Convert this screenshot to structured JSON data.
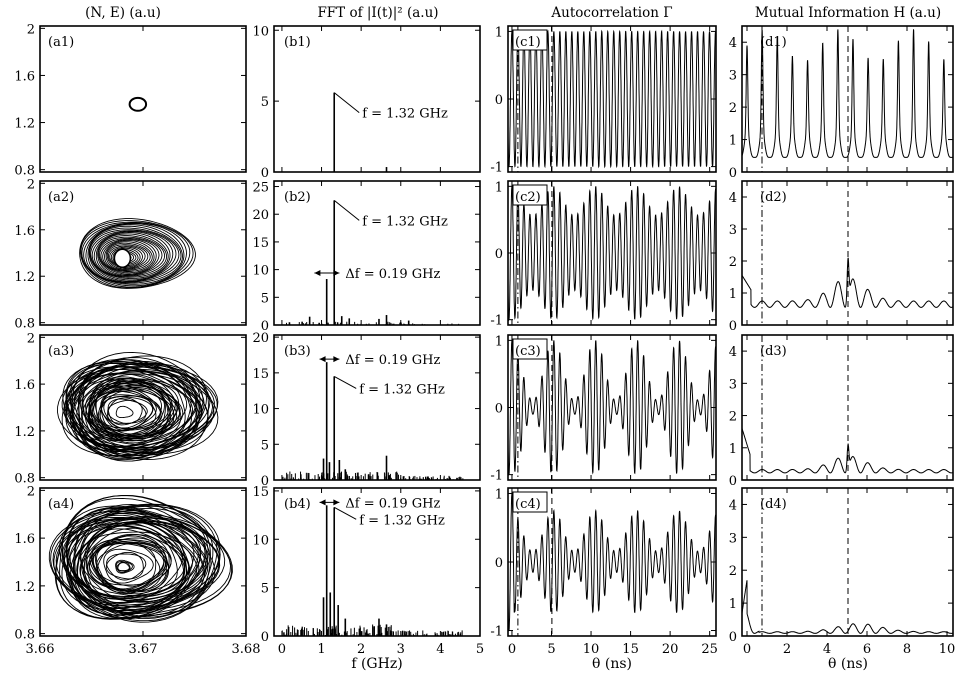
{
  "headers": [
    "(N, E)  (a.u)",
    "FFT of |I(t)|²  (a.u)",
    "Autocorrelation Γ",
    "Mutual Information H  (a.u)"
  ],
  "xlabels": [
    "f (GHz)",
    "θ (ns)",
    "θ (ns)"
  ],
  "chart_data": [
    {
      "type": "scatter",
      "panel": "a1",
      "series": [
        {
          "shape": "limit cycle",
          "x_range": [
            3.6687,
            3.6703
          ],
          "y_range": [
            1.3,
            1.41
          ]
        }
      ],
      "xlim": [
        3.66,
        3.68
      ],
      "ylim": [
        0.78,
        2.02
      ]
    },
    {
      "type": "scatter",
      "panel": "a2",
      "series": [
        {
          "shape": "torus",
          "x_range": [
            3.6633,
            3.6745
          ],
          "y_range": [
            1.07,
            1.67
          ]
        }
      ],
      "xlim": [
        3.66,
        3.68
      ],
      "ylim": [
        0.78,
        2.02
      ]
    },
    {
      "type": "scatter",
      "panel": "a3",
      "series": [
        {
          "shape": "chaotic attractor",
          "x_range": [
            3.6615,
            3.6765
          ],
          "y_range": [
            0.92,
            1.8
          ]
        }
      ],
      "xlim": [
        3.66,
        3.68
      ],
      "ylim": [
        0.78,
        2.02
      ]
    },
    {
      "type": "scatter",
      "panel": "a4",
      "series": [
        {
          "shape": "chaotic attractor",
          "x_range": [
            3.6605,
            3.6775
          ],
          "y_range": [
            0.86,
            1.88
          ]
        }
      ],
      "xlim": [
        3.66,
        3.68
      ],
      "ylim": [
        0.78,
        2.02
      ]
    },
    {
      "type": "bar",
      "panel": "b1",
      "x": [
        1.32,
        2.64
      ],
      "values": [
        5.6,
        0.35
      ],
      "xlim": [
        -0.2,
        5
      ],
      "ylim": [
        0,
        10.3
      ],
      "annotations": [
        "f = 1.32 GHz"
      ]
    },
    {
      "type": "bar",
      "panel": "b2",
      "x": [
        0.19,
        0.51,
        0.7,
        0.94,
        1.13,
        1.32,
        1.51,
        1.7,
        2.45,
        2.64,
        3.0,
        3.2
      ],
      "values": [
        0.5,
        0.6,
        1.5,
        0.4,
        8.3,
        22.5,
        1.6,
        1.2,
        1.1,
        1.8,
        0.5,
        0.8
      ],
      "xlim": [
        -0.2,
        5
      ],
      "ylim": [
        0,
        26
      ],
      "annotations": [
        "f = 1.32 GHz",
        "Δf = 0.19 GHz"
      ]
    },
    {
      "type": "bar",
      "panel": "b3",
      "x": [
        1.05,
        1.13,
        1.2,
        1.32,
        1.45,
        1.6,
        2.64
      ],
      "values": [
        3,
        16.5,
        2.5,
        14.5,
        2.8,
        1.5,
        3.4
      ],
      "xlim": [
        -0.2,
        5
      ],
      "ylim": [
        0,
        20.3
      ],
      "annotations": [
        "Δf = 0.19 GHz",
        "f = 1.32 GHz"
      ]
    },
    {
      "type": "bar",
      "panel": "b4",
      "x": [
        1.05,
        1.13,
        1.22,
        1.32,
        1.42,
        1.6,
        2.3,
        2.45,
        2.64
      ],
      "values": [
        4,
        13.5,
        4.5,
        13.3,
        3.2,
        1.8,
        1,
        1.8,
        1.2
      ],
      "xlim": [
        -0.2,
        5
      ],
      "ylim": [
        0,
        15.3
      ],
      "annotations": [
        "Δf = 0.19 GHz",
        "f = 1.32 GHz"
      ]
    },
    {
      "type": "line",
      "panel": "c1",
      "x_range": [
        -0.5,
        25.8
      ],
      "amplitude": 1,
      "period_ns": 0.757,
      "xlim": [
        -0.5,
        25.8
      ],
      "ylim": [
        -1.08,
        1.08
      ],
      "vlines": [
        0.75,
        5.05
      ]
    },
    {
      "type": "line",
      "panel": "c2",
      "x_range": [
        -0.5,
        25.8
      ],
      "amplitude_range": [
        0.55,
        1
      ],
      "period_ns": 0.757,
      "beat_period_ns": 5.26,
      "xlim": [
        -0.5,
        25.8
      ],
      "ylim": [
        -1.08,
        1.08
      ],
      "vlines": [
        0.75,
        5.05
      ]
    },
    {
      "type": "line",
      "panel": "c3",
      "x_range": [
        -0.5,
        25.8
      ],
      "amplitude_range": [
        0.15,
        1
      ],
      "period_ns": 0.757,
      "beat_period_ns": 5.26,
      "xlim": [
        -0.5,
        25.8
      ],
      "ylim": [
        -1.08,
        1.08
      ],
      "vlines": [
        0.75,
        5.05
      ]
    },
    {
      "type": "line",
      "panel": "c4",
      "x_range": [
        -0.5,
        25.8
      ],
      "amplitude_range": [
        0.2,
        0.75
      ],
      "period_ns": 0.757,
      "beat_period_ns": 5.26,
      "xlim": [
        -0.5,
        25.8
      ],
      "ylim": [
        -1.08,
        1.08
      ],
      "vlines": [
        0.75,
        5.05
      ]
    },
    {
      "type": "line",
      "panel": "d1",
      "x_range": [
        -0.25,
        10.3
      ],
      "peaks_range": [
        2.8,
        4.1
      ],
      "baseline": 0.45,
      "peak_period_ns": 0.757,
      "xlim": [
        -0.25,
        10.3
      ],
      "ylim": [
        0,
        4.5
      ],
      "vlines": [
        0.75,
        5.05
      ]
    },
    {
      "type": "line",
      "panel": "d2",
      "x_range": [
        -0.25,
        10.3
      ],
      "baseline": 0.6,
      "main_peak": {
        "x": 5.05,
        "y": 2.4
      },
      "xlim": [
        -0.25,
        10.3
      ],
      "ylim": [
        0,
        4.5
      ],
      "vlines": [
        0.75,
        5.05
      ]
    },
    {
      "type": "line",
      "panel": "d3",
      "x_range": [
        -0.25,
        10.3
      ],
      "baseline": 0.25,
      "main_peak": {
        "x": 5.05,
        "y": 1.4
      },
      "xlim": [
        -0.25,
        10.3
      ],
      "ylim": [
        0,
        4.5
      ],
      "vlines": [
        0.75,
        5.05
      ]
    },
    {
      "type": "line",
      "panel": "d4",
      "x_range": [
        -0.25,
        10.3
      ],
      "baseline": 0.1,
      "main_peak": {
        "x": 5.6,
        "y": 0.55
      },
      "xlim": [
        -0.25,
        10.3
      ],
      "ylim": [
        0,
        4.5
      ],
      "vlines": [
        0.75,
        5.05
      ]
    }
  ],
  "panel_labels": [
    "(a1)",
    "(a2)",
    "(a3)",
    "(a4)",
    "(b1)",
    "(b2)",
    "(b3)",
    "(b4)",
    "(c1)",
    "(c2)",
    "(c3)",
    "(c4)",
    "(d1)",
    "(d2)",
    "(d3)",
    "(d4)"
  ],
  "tick_labels": {
    "a_y": [
      "2",
      "1.6",
      "1.2",
      "0.8"
    ],
    "a_x": [
      "3.66",
      "3.67",
      "3.68"
    ],
    "b1_y": [
      "10",
      "5",
      "0"
    ],
    "b2_y": [
      "25",
      "20",
      "15",
      "10",
      "5",
      "0"
    ],
    "b3_y": [
      "20",
      "15",
      "10",
      "5",
      "0"
    ],
    "b4_y": [
      "15",
      "10",
      "5",
      "0"
    ],
    "b_x": [
      "0",
      "1",
      "2",
      "3",
      "4",
      "5"
    ],
    "c_y": [
      "1",
      "0",
      "-1"
    ],
    "c_x": [
      "0",
      "5",
      "10",
      "15",
      "20",
      "25"
    ],
    "d_y": [
      "4",
      "3",
      "2",
      "1",
      "0"
    ],
    "d_x": [
      "0",
      "2",
      "4",
      "6",
      "8",
      "10"
    ]
  }
}
